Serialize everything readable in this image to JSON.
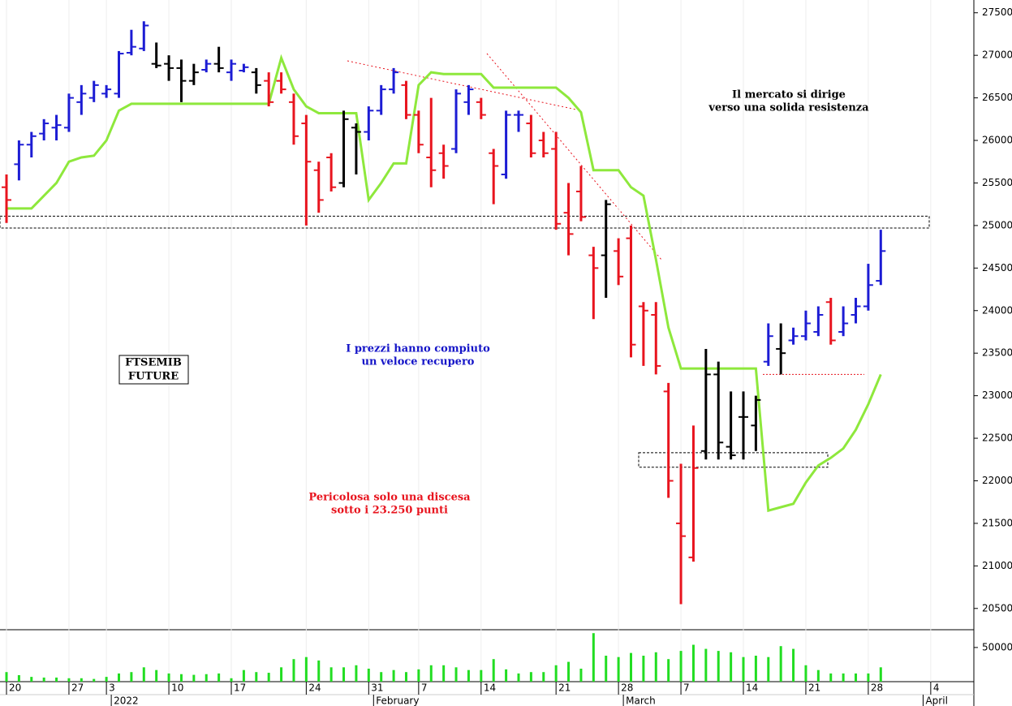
{
  "chart_data": {
    "type": "ohlc",
    "categories": [
      "20",
      null,
      null,
      null,
      null,
      "27",
      null,
      null,
      "3",
      null,
      null,
      null,
      null,
      "10",
      null,
      null,
      null,
      null,
      "17",
      null,
      null,
      null,
      null,
      null,
      "24",
      null,
      null,
      null,
      null,
      "31",
      null,
      null,
      null,
      "7",
      null,
      null,
      null,
      null,
      "14",
      null,
      null,
      null,
      null,
      null,
      "21",
      null,
      null,
      null,
      null,
      "28",
      null,
      null,
      null,
      null,
      "7",
      null,
      null,
      null,
      null,
      "14",
      null,
      null,
      null,
      null,
      "21",
      null,
      null,
      null,
      null,
      "28",
      null,
      null,
      null,
      null,
      "4"
    ],
    "months": [
      null,
      null,
      null,
      null,
      null,
      null,
      null,
      null,
      "2022",
      null,
      null,
      null,
      null,
      null,
      null,
      null,
      null,
      null,
      null,
      null,
      null,
      null,
      null,
      null,
      null,
      null,
      null,
      null,
      null,
      "February",
      null,
      null,
      null,
      null,
      null,
      null,
      null,
      null,
      null,
      null,
      null,
      null,
      null,
      null,
      null,
      null,
      null,
      null,
      null,
      "March",
      null,
      null,
      null,
      null,
      null,
      null,
      null,
      null,
      null,
      null,
      null,
      null,
      null,
      null,
      null,
      null,
      null,
      null,
      null,
      null,
      null,
      null,
      null,
      "April",
      null
    ],
    "open": [
      25450,
      25720,
      25950,
      26080,
      26150,
      26150,
      26450,
      26500,
      26550,
      26550,
      27030,
      27080,
      26900,
      26900,
      26850,
      26700,
      26830,
      26900,
      26800,
      26820,
      26800,
      26700,
      26700,
      26450,
      26200,
      25650,
      25800,
      25500,
      26150,
      26100,
      26350,
      26600,
      26650,
      26300,
      25800,
      25850,
      25900,
      26450,
      26450,
      25850,
      25600,
      26300,
      26200,
      26000,
      25900,
      25150,
      25400,
      24650,
      24650,
      24700,
      24850,
      24050,
      23950,
      23050,
      21500,
      21100,
      22350,
      23250,
      22400,
      22750,
      22650,
      23400,
      23550,
      23650,
      23700,
      23750,
      24100,
      23750,
      23950,
      24050,
      24350,
      null,
      null,
      null,
      null
    ],
    "high": [
      25600,
      26000,
      26100,
      26250,
      26300,
      26550,
      26650,
      26700,
      26650,
      27050,
      27300,
      27400,
      27150,
      27000,
      26950,
      26900,
      26950,
      27100,
      26950,
      26900,
      26850,
      26800,
      26800,
      26550,
      26300,
      25750,
      25850,
      26350,
      26200,
      26400,
      26650,
      26850,
      26700,
      26350,
      26500,
      25950,
      26600,
      26650,
      26500,
      25900,
      26350,
      26350,
      26300,
      26100,
      26100,
      25500,
      25700,
      24750,
      25300,
      24850,
      25000,
      24100,
      24100,
      23150,
      22200,
      22650,
      23550,
      23400,
      23050,
      23050,
      23000,
      23850,
      23850,
      23800,
      24000,
      24050,
      24150,
      24050,
      24150,
      24550,
      24950,
      null,
      null,
      null,
      null
    ],
    "low": [
      25030,
      25530,
      25800,
      26000,
      26000,
      26100,
      26300,
      26450,
      26500,
      26500,
      27000,
      27050,
      26850,
      26700,
      26450,
      26650,
      26800,
      26800,
      26700,
      26800,
      26550,
      26400,
      26550,
      25950,
      25000,
      25150,
      25400,
      25450,
      25600,
      26000,
      26300,
      26550,
      26250,
      25850,
      25450,
      25550,
      25850,
      26300,
      26250,
      25250,
      25550,
      26100,
      25800,
      25800,
      24950,
      24650,
      25050,
      23900,
      24150,
      24300,
      23450,
      23350,
      23250,
      21800,
      20550,
      21050,
      22250,
      22250,
      22250,
      22250,
      22350,
      23350,
      23250,
      23600,
      23650,
      23700,
      23600,
      23700,
      23850,
      24000,
      24300,
      null,
      null,
      null,
      null
    ],
    "close": [
      25300,
      25950,
      26050,
      26200,
      26180,
      26500,
      26550,
      26650,
      26600,
      27020,
      27100,
      27350,
      26880,
      26850,
      26700,
      26800,
      26900,
      26850,
      26900,
      26860,
      26650,
      26450,
      26600,
      26050,
      25750,
      25300,
      25450,
      26250,
      26100,
      26350,
      26600,
      26800,
      26300,
      25950,
      25650,
      25700,
      26550,
      26600,
      26300,
      25700,
      26300,
      26300,
      25850,
      25850,
      25020,
      24900,
      25100,
      24500,
      25250,
      24400,
      23600,
      24000,
      23350,
      22000,
      21350,
      22150,
      23250,
      22450,
      22300,
      22750,
      22950,
      23700,
      23500,
      23700,
      23850,
      23950,
      23650,
      23850,
      24050,
      24300,
      24700,
      null,
      null,
      null,
      null
    ],
    "bar_colors": [
      "#e8141e",
      "#1c1cd4",
      "#1c1cd4",
      "#1c1cd4",
      "#1c1cd4",
      "#1c1cd4",
      "#1c1cd4",
      "#1c1cd4",
      "#1c1cd4",
      "#1c1cd4",
      "#1c1cd4",
      "#1c1cd4",
      "#000000",
      "#000000",
      "#000000",
      "#000000",
      "#1c1cd4",
      "#000000",
      "#1c1cd4",
      "#1c1cd4",
      "#000000",
      "#e8141e",
      "#e8141e",
      "#e8141e",
      "#e8141e",
      "#e8141e",
      "#e8141e",
      "#000000",
      "#000000",
      "#1c1cd4",
      "#1c1cd4",
      "#1c1cd4",
      "#e8141e",
      "#e8141e",
      "#e8141e",
      "#e8141e",
      "#1c1cd4",
      "#1c1cd4",
      "#e8141e",
      "#e8141e",
      "#1c1cd4",
      "#1c1cd4",
      "#e8141e",
      "#e8141e",
      "#e8141e",
      "#e8141e",
      "#e8141e",
      "#e8141e",
      "#000000",
      "#e8141e",
      "#e8141e",
      "#e8141e",
      "#e8141e",
      "#e8141e",
      "#e8141e",
      "#e8141e",
      "#000000",
      "#000000",
      "#000000",
      "#000000",
      "#000000",
      "#1c1cd4",
      "#000000",
      "#1c1cd4",
      "#1c1cd4",
      "#1c1cd4",
      "#e8141e",
      "#1c1cd4",
      "#1c1cd4",
      "#1c1cd4",
      "#1c1cd4",
      null,
      null,
      null,
      null
    ],
    "stop_line": {
      "color": "#8ee83c",
      "values": [
        25200,
        25200,
        25200,
        25350,
        25500,
        25750,
        25800,
        25820,
        26000,
        26350,
        26430,
        26430,
        26430,
        26430,
        26430,
        26430,
        26430,
        26430,
        26430,
        26430,
        26430,
        26430,
        26970,
        26600,
        26400,
        26320,
        26320,
        26320,
        26320,
        25300,
        25500,
        25730,
        25730,
        26650,
        26800,
        26780,
        26780,
        26780,
        26780,
        26620,
        26620,
        26620,
        26620,
        26620,
        26620,
        26500,
        26330,
        25650,
        25650,
        25650,
        25450,
        25350,
        24600,
        23800,
        23320,
        23320,
        23320,
        23320,
        23320,
        23320,
        23320,
        21650,
        21690,
        21730,
        21980,
        22180,
        22270,
        22380,
        22600,
        22900,
        23250,
        null,
        null,
        null,
        null
      ]
    },
    "volume": {
      "color": "#22dd22",
      "values": [
        14000,
        9500,
        7000,
        6000,
        6000,
        5000,
        5000,
        4000,
        7000,
        12000,
        14000,
        21000,
        17000,
        12000,
        11000,
        10000,
        11000,
        12000,
        5000,
        17000,
        14000,
        13000,
        21000,
        33000,
        36000,
        31000,
        21000,
        21000,
        24000,
        19000,
        14000,
        17000,
        14000,
        18000,
        24000,
        24000,
        21000,
        17000,
        17000,
        33000,
        18000,
        12000,
        14000,
        14000,
        24000,
        29000,
        19000,
        71000,
        38000,
        36000,
        42000,
        38000,
        43000,
        33000,
        45000,
        54000,
        48000,
        45000,
        43000,
        36000,
        38000,
        36000,
        52000,
        48000,
        24000,
        17000,
        12000,
        12000,
        12000,
        12000,
        21000,
        null,
        null,
        null,
        null
      ],
      "ylim": [
        0,
        76000
      ],
      "yticks": [
        50000
      ]
    },
    "ylim": [
      20250,
      27650
    ],
    "yticks": [
      20500,
      21000,
      21500,
      22000,
      22500,
      23000,
      23500,
      24000,
      24500,
      25000,
      25500,
      26000,
      26500,
      27000,
      27500
    ],
    "zones": [
      {
        "low": 24970,
        "high": 25110
      },
      {
        "low": 22160,
        "high": 22330
      }
    ],
    "support_level": 23250,
    "label_box": [
      "FTSEMIB",
      "FUTURE"
    ],
    "annotations": [
      {
        "color": "#000000",
        "lines": [
          "Il mercato si dirige",
          "verso una solida resistenza"
        ]
      },
      {
        "color": "#1515c8",
        "lines": [
          "I prezzi hanno compiuto",
          "un veloce recupero"
        ]
      },
      {
        "color": "#e8141e",
        "lines": [
          "Pericolosa solo una discesa",
          "sotto i 23.250 punti"
        ]
      }
    ]
  }
}
